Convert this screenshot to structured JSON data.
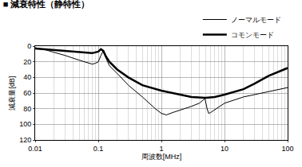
{
  "chart_data": {
    "type": "line",
    "title": "■ 減衰特性（静特性）",
    "x_label": "周波数[MHz]",
    "y_label": "減衰量[dB]",
    "log": "x",
    "grid": true,
    "legend": "top right",
    "xlim": [
      0.01,
      100
    ],
    "xticks": [
      0.01,
      0.1,
      1,
      10,
      100
    ],
    "ylim": [
      0,
      120
    ],
    "yticks": [
      0,
      20,
      40,
      60,
      80,
      100,
      120
    ],
    "series": [
      {
        "name": "ノーマルモード",
        "color": "#000000",
        "line_style": "solid",
        "x": [
          0.01,
          0.015,
          0.02,
          0.03,
          0.05,
          0.07,
          0.08,
          0.09,
          0.1,
          0.11,
          0.12,
          0.13,
          0.15,
          0.2,
          0.3,
          0.5,
          0.8,
          1,
          1.2,
          1.5,
          2,
          3,
          4,
          4.6,
          4.9,
          5.3,
          5.6,
          6,
          8,
          10,
          20,
          50,
          100
        ],
        "values": [
          2,
          5,
          8,
          12,
          18,
          22,
          23,
          22,
          20,
          12,
          6,
          14,
          25,
          35,
          50,
          65,
          80,
          86,
          88,
          85,
          82,
          77,
          73,
          69,
          67,
          80,
          86,
          85,
          78,
          73,
          65,
          58,
          53
        ]
      },
      {
        "name": "コモンモード",
        "color": "#000000",
        "line_style": "solid",
        "x": [
          0.01,
          0.02,
          0.05,
          0.08,
          0.1,
          0.11,
          0.12,
          0.13,
          0.15,
          0.2,
          0.3,
          0.5,
          1,
          2,
          3,
          5,
          7,
          10,
          20,
          30,
          50,
          100
        ],
        "values": [
          3,
          5,
          8,
          9,
          7,
          4,
          6,
          12,
          20,
          30,
          40,
          50,
          57,
          62,
          65,
          66,
          65,
          62,
          55,
          48,
          38,
          28
        ]
      }
    ]
  }
}
